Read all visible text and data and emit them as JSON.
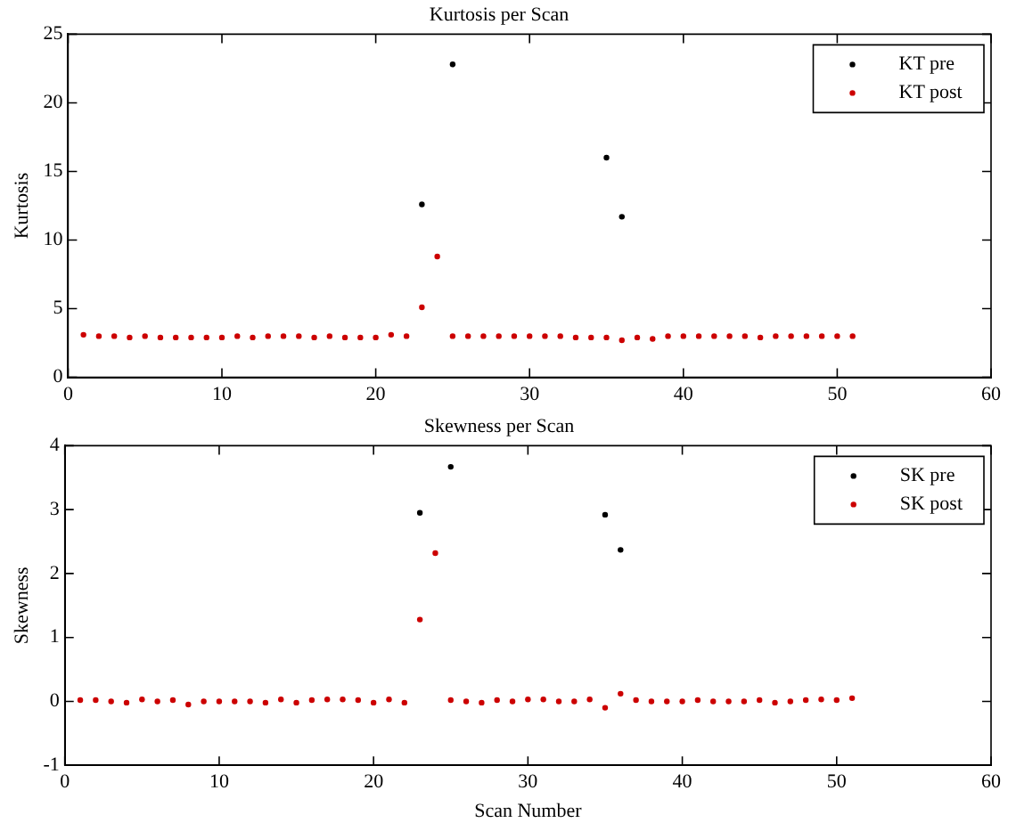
{
  "chart_data": [
    {
      "type": "scatter",
      "title": "Kurtosis per Scan",
      "ylabel": "Kurtosis",
      "marker": "circle",
      "legend": "top right",
      "grid": false,
      "xlim": [
        0,
        60
      ],
      "xticks": [
        0,
        10,
        20,
        30,
        40,
        50,
        60
      ],
      "ylim": [
        0,
        25
      ],
      "yticks": [
        0,
        5,
        10,
        15,
        20,
        25
      ],
      "x": [
        1,
        2,
        3,
        4,
        5,
        6,
        7,
        8,
        9,
        10,
        11,
        12,
        13,
        14,
        15,
        16,
        17,
        18,
        19,
        20,
        21,
        22,
        23,
        24,
        25,
        26,
        27,
        28,
        29,
        30,
        31,
        32,
        33,
        34,
        35,
        36,
        37,
        38,
        39,
        40,
        41,
        42,
        43,
        44,
        45,
        46,
        47,
        48,
        49,
        50,
        51
      ],
      "series": [
        {
          "name": "KT pre",
          "color": "#000000",
          "values": [
            null,
            null,
            null,
            null,
            null,
            null,
            null,
            null,
            null,
            null,
            null,
            null,
            null,
            null,
            null,
            null,
            null,
            null,
            null,
            null,
            null,
            null,
            12.6,
            null,
            22.8,
            null,
            null,
            null,
            null,
            null,
            null,
            null,
            null,
            null,
            16.0,
            11.7,
            null,
            null,
            null,
            null,
            null,
            null,
            null,
            null,
            null,
            null,
            null,
            null,
            null,
            null,
            null
          ]
        },
        {
          "name": "KT post",
          "color": "#cc0000",
          "values": [
            3.1,
            3.0,
            3.0,
            2.9,
            3.0,
            2.9,
            2.9,
            2.9,
            2.9,
            2.9,
            3.0,
            2.9,
            3.0,
            3.0,
            3.0,
            2.9,
            3.0,
            2.9,
            2.9,
            2.9,
            3.1,
            3.0,
            5.1,
            8.8,
            3.0,
            3.0,
            3.0,
            3.0,
            3.0,
            3.0,
            3.0,
            3.0,
            2.9,
            2.9,
            2.9,
            2.7,
            2.9,
            2.8,
            3.0,
            3.0,
            3.0,
            3.0,
            3.0,
            3.0,
            2.9,
            3.0,
            3.0,
            3.0,
            3.0,
            3.0,
            3.0
          ]
        }
      ]
    },
    {
      "type": "scatter",
      "title": "Skewness per Scan",
      "xlabel": "Scan Number",
      "ylabel": "Skewness",
      "marker": "circle",
      "legend": "top right",
      "grid": false,
      "xlim": [
        0,
        60
      ],
      "xticks": [
        0,
        10,
        20,
        30,
        40,
        50,
        60
      ],
      "ylim": [
        -1,
        4
      ],
      "yticks": [
        -1,
        0,
        1,
        2,
        3,
        4
      ],
      "x": [
        1,
        2,
        3,
        4,
        5,
        6,
        7,
        8,
        9,
        10,
        11,
        12,
        13,
        14,
        15,
        16,
        17,
        18,
        19,
        20,
        21,
        22,
        23,
        24,
        25,
        26,
        27,
        28,
        29,
        30,
        31,
        32,
        33,
        34,
        35,
        36,
        37,
        38,
        39,
        40,
        41,
        42,
        43,
        44,
        45,
        46,
        47,
        48,
        49,
        50,
        51
      ],
      "series": [
        {
          "name": "SK pre",
          "color": "#000000",
          "values": [
            null,
            null,
            null,
            null,
            null,
            null,
            null,
            null,
            null,
            null,
            null,
            null,
            null,
            null,
            null,
            null,
            null,
            null,
            null,
            null,
            null,
            null,
            2.95,
            null,
            3.67,
            null,
            null,
            null,
            null,
            null,
            null,
            null,
            null,
            null,
            2.92,
            2.37,
            null,
            null,
            null,
            null,
            null,
            null,
            null,
            null,
            null,
            null,
            null,
            null,
            null,
            null,
            null
          ]
        },
        {
          "name": "SK post",
          "color": "#cc0000",
          "values": [
            0.02,
            0.02,
            0.0,
            -0.02,
            0.03,
            0.0,
            0.02,
            -0.05,
            0.0,
            0.0,
            0.0,
            0.0,
            -0.02,
            0.03,
            -0.02,
            0.02,
            0.03,
            0.03,
            0.02,
            -0.02,
            0.03,
            -0.02,
            1.28,
            2.32,
            0.02,
            0.0,
            -0.02,
            0.02,
            0.0,
            0.03,
            0.03,
            0.0,
            0.0,
            0.03,
            -0.1,
            0.12,
            0.02,
            0.0,
            0.0,
            0.0,
            0.02,
            0.0,
            0.0,
            0.0,
            0.02,
            -0.02,
            0.0,
            0.02,
            0.03,
            0.02,
            0.05
          ]
        }
      ]
    }
  ]
}
